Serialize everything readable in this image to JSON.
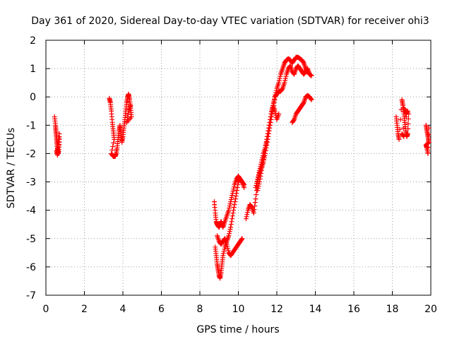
{
  "chart_data": {
    "type": "scatter",
    "title": "Day 361 of 2020, Sidereal Day-to-day VTEC variation (SDTVAR) for receiver ohi3",
    "xlabel": "GPS time / hours",
    "ylabel": "SDTVAR / TECUs",
    "xlim": [
      0,
      20
    ],
    "ylim": [
      -7,
      2
    ],
    "xticks": [
      0,
      2,
      4,
      6,
      8,
      10,
      12,
      14,
      16,
      18,
      20
    ],
    "yticks": [
      -7,
      -6,
      -5,
      -4,
      -3,
      -2,
      -1,
      0,
      1,
      2
    ],
    "grid": true,
    "marker": "+",
    "color": "#ff0000",
    "series": [
      {
        "name": "ohi3",
        "segments": [
          {
            "x": [
              0.45,
              0.5,
              0.52,
              0.55,
              0.57,
              0.6,
              0.62,
              0.65,
              0.68,
              0.7,
              0.55,
              0.6,
              0.65,
              0.7
            ],
            "y": [
              -0.7,
              -1.0,
              -1.2,
              -1.4,
              -1.6,
              -1.8,
              -1.9,
              -2.0,
              -1.7,
              -1.3,
              -1.9,
              -2.05,
              -1.85,
              -1.5
            ]
          },
          {
            "x": [
              3.3,
              3.35,
              3.4,
              3.45,
              3.5,
              3.55,
              3.4,
              3.5,
              3.6,
              3.65,
              3.7,
              3.75,
              3.8,
              3.85,
              3.9,
              3.95,
              4.0,
              4.05,
              4.1,
              4.15,
              4.2,
              4.25,
              4.3,
              4.35,
              4.4,
              4.45,
              4.2,
              4.3,
              4.4
            ],
            "y": [
              -0.05,
              -0.2,
              -0.5,
              -0.9,
              -1.2,
              -1.5,
              -2.0,
              -2.1,
              -2.1,
              -2.0,
              -1.8,
              -1.5,
              -1.2,
              -1.0,
              -1.3,
              -1.6,
              -1.4,
              -1.1,
              -0.8,
              -0.5,
              -0.2,
              0.0,
              0.1,
              -0.1,
              -0.4,
              -0.7,
              -0.9,
              -0.5,
              -0.3
            ]
          },
          {
            "x": [
              8.75,
              8.8,
              8.85,
              8.9,
              8.95,
              9.0,
              9.05,
              9.1,
              9.15,
              9.2,
              9.3,
              9.4,
              9.5,
              9.6,
              9.7,
              9.8,
              9.9,
              10.0,
              10.1,
              10.2,
              10.3
            ],
            "y": [
              -3.7,
              -4.1,
              -4.4,
              -4.5,
              -4.55,
              -4.6,
              -4.5,
              -4.4,
              -4.5,
              -4.6,
              -4.4,
              -4.2,
              -4.0,
              -3.7,
              -3.4,
              -3.1,
              -2.9,
              -2.8,
              -2.9,
              -3.0,
              -3.2
            ]
          },
          {
            "x": [
              8.8,
              8.85,
              8.9,
              8.95,
              9.0,
              9.05,
              9.1,
              9.15,
              9.2,
              9.3,
              9.4,
              9.5,
              9.6,
              9.7,
              9.8,
              9.9,
              10.0,
              10.1,
              10.2,
              10.3
            ],
            "y": [
              -5.3,
              -5.6,
              -5.9,
              -6.1,
              -6.3,
              -6.4,
              -6.2,
              -5.9,
              -5.6,
              -5.3,
              -5.1,
              -4.9,
              -4.6,
              -4.2,
              -3.8,
              -3.4,
              -3.0,
              -2.9,
              -3.0,
              -3.1
            ]
          },
          {
            "x": [
              8.9,
              9.0,
              9.1,
              9.2,
              9.3,
              9.4,
              9.5,
              9.6,
              9.7,
              9.8,
              9.9,
              10.0,
              10.1,
              10.2
            ],
            "y": [
              -4.9,
              -5.1,
              -5.2,
              -5.1,
              -5.0,
              -5.2,
              -5.5,
              -5.6,
              -5.5,
              -5.4,
              -5.3,
              -5.2,
              -5.1,
              -5.0
            ]
          },
          {
            "x": [
              10.4,
              10.5,
              10.6,
              10.7,
              10.8,
              10.9,
              11.0,
              11.1,
              11.2,
              11.3,
              11.4,
              11.5,
              11.6,
              11.7,
              11.8,
              11.9,
              12.0,
              12.1,
              12.2,
              12.3,
              12.4,
              12.5,
              12.6,
              12.7,
              12.8,
              12.9,
              13.0,
              13.1,
              13.2,
              13.3,
              13.4,
              13.5,
              13.6,
              13.7,
              13.8
            ],
            "y": [
              -4.3,
              -4.0,
              -3.8,
              -3.9,
              -4.1,
              -3.6,
              -3.0,
              -2.7,
              -2.5,
              -2.3,
              -2.0,
              -1.6,
              -1.2,
              -0.8,
              -0.4,
              0.0,
              0.3,
              0.5,
              0.8,
              1.0,
              1.2,
              1.3,
              1.35,
              1.3,
              1.2,
              1.3,
              1.4,
              1.4,
              1.35,
              1.3,
              1.2,
              1.0,
              0.9,
              0.8,
              0.75
            ]
          },
          {
            "x": [
              10.9,
              11.0,
              11.1,
              11.2,
              11.3,
              11.4,
              11.5,
              11.6,
              11.7,
              11.8,
              11.9,
              12.0,
              12.1,
              12.2,
              12.3,
              12.4,
              12.5,
              12.6,
              12.7,
              12.8,
              12.9,
              13.0,
              13.1,
              13.2,
              13.3,
              13.4,
              13.5,
              13.6,
              13.7
            ],
            "y": [
              -3.2,
              -2.9,
              -2.6,
              -2.3,
              -2.0,
              -1.8,
              -1.5,
              -1.1,
              -0.7,
              -0.3,
              0.0,
              0.1,
              0.2,
              0.2,
              0.3,
              0.5,
              0.8,
              1.0,
              1.1,
              0.9,
              0.8,
              1.0,
              1.1,
              1.0,
              0.9,
              0.8,
              0.9,
              1.0,
              0.8
            ]
          },
          {
            "x": [
              11.0,
              11.1,
              11.2,
              11.3,
              11.4,
              11.5,
              11.6,
              11.7,
              11.8,
              11.9,
              12.0,
              12.1
            ],
            "y": [
              -3.3,
              -3.0,
              -2.6,
              -2.2,
              -1.8,
              -1.4,
              -1.0,
              -0.6,
              -0.3,
              -0.5,
              -0.8,
              -0.6
            ]
          },
          {
            "x": [
              12.8,
              12.9,
              13.0,
              13.1,
              13.2,
              13.3,
              13.4,
              13.5,
              13.6,
              13.7,
              13.8
            ],
            "y": [
              -0.9,
              -0.8,
              -0.6,
              -0.5,
              -0.4,
              -0.3,
              -0.2,
              0.0,
              0.05,
              0.0,
              -0.1
            ]
          },
          {
            "x": [
              18.2,
              18.25,
              18.3,
              18.35,
              18.5,
              18.55,
              18.6,
              18.65,
              18.7,
              18.75,
              18.8,
              18.85,
              18.6,
              18.7,
              18.8,
              18.5,
              18.6
            ],
            "y": [
              -0.7,
              -1.0,
              -1.3,
              -1.5,
              -0.1,
              -0.3,
              -0.6,
              -0.9,
              -1.2,
              -1.4,
              -1.3,
              -0.6,
              -0.4,
              -0.6,
              -0.5,
              -1.3,
              -1.4
            ]
          },
          {
            "x": [
              19.75,
              19.8,
              19.85,
              19.9,
              19.75,
              19.8,
              19.85,
              19.9
            ],
            "y": [
              -1.0,
              -1.2,
              -1.4,
              -1.6,
              -1.7,
              -1.8,
              -2.0,
              -1.1
            ]
          }
        ]
      }
    ]
  }
}
